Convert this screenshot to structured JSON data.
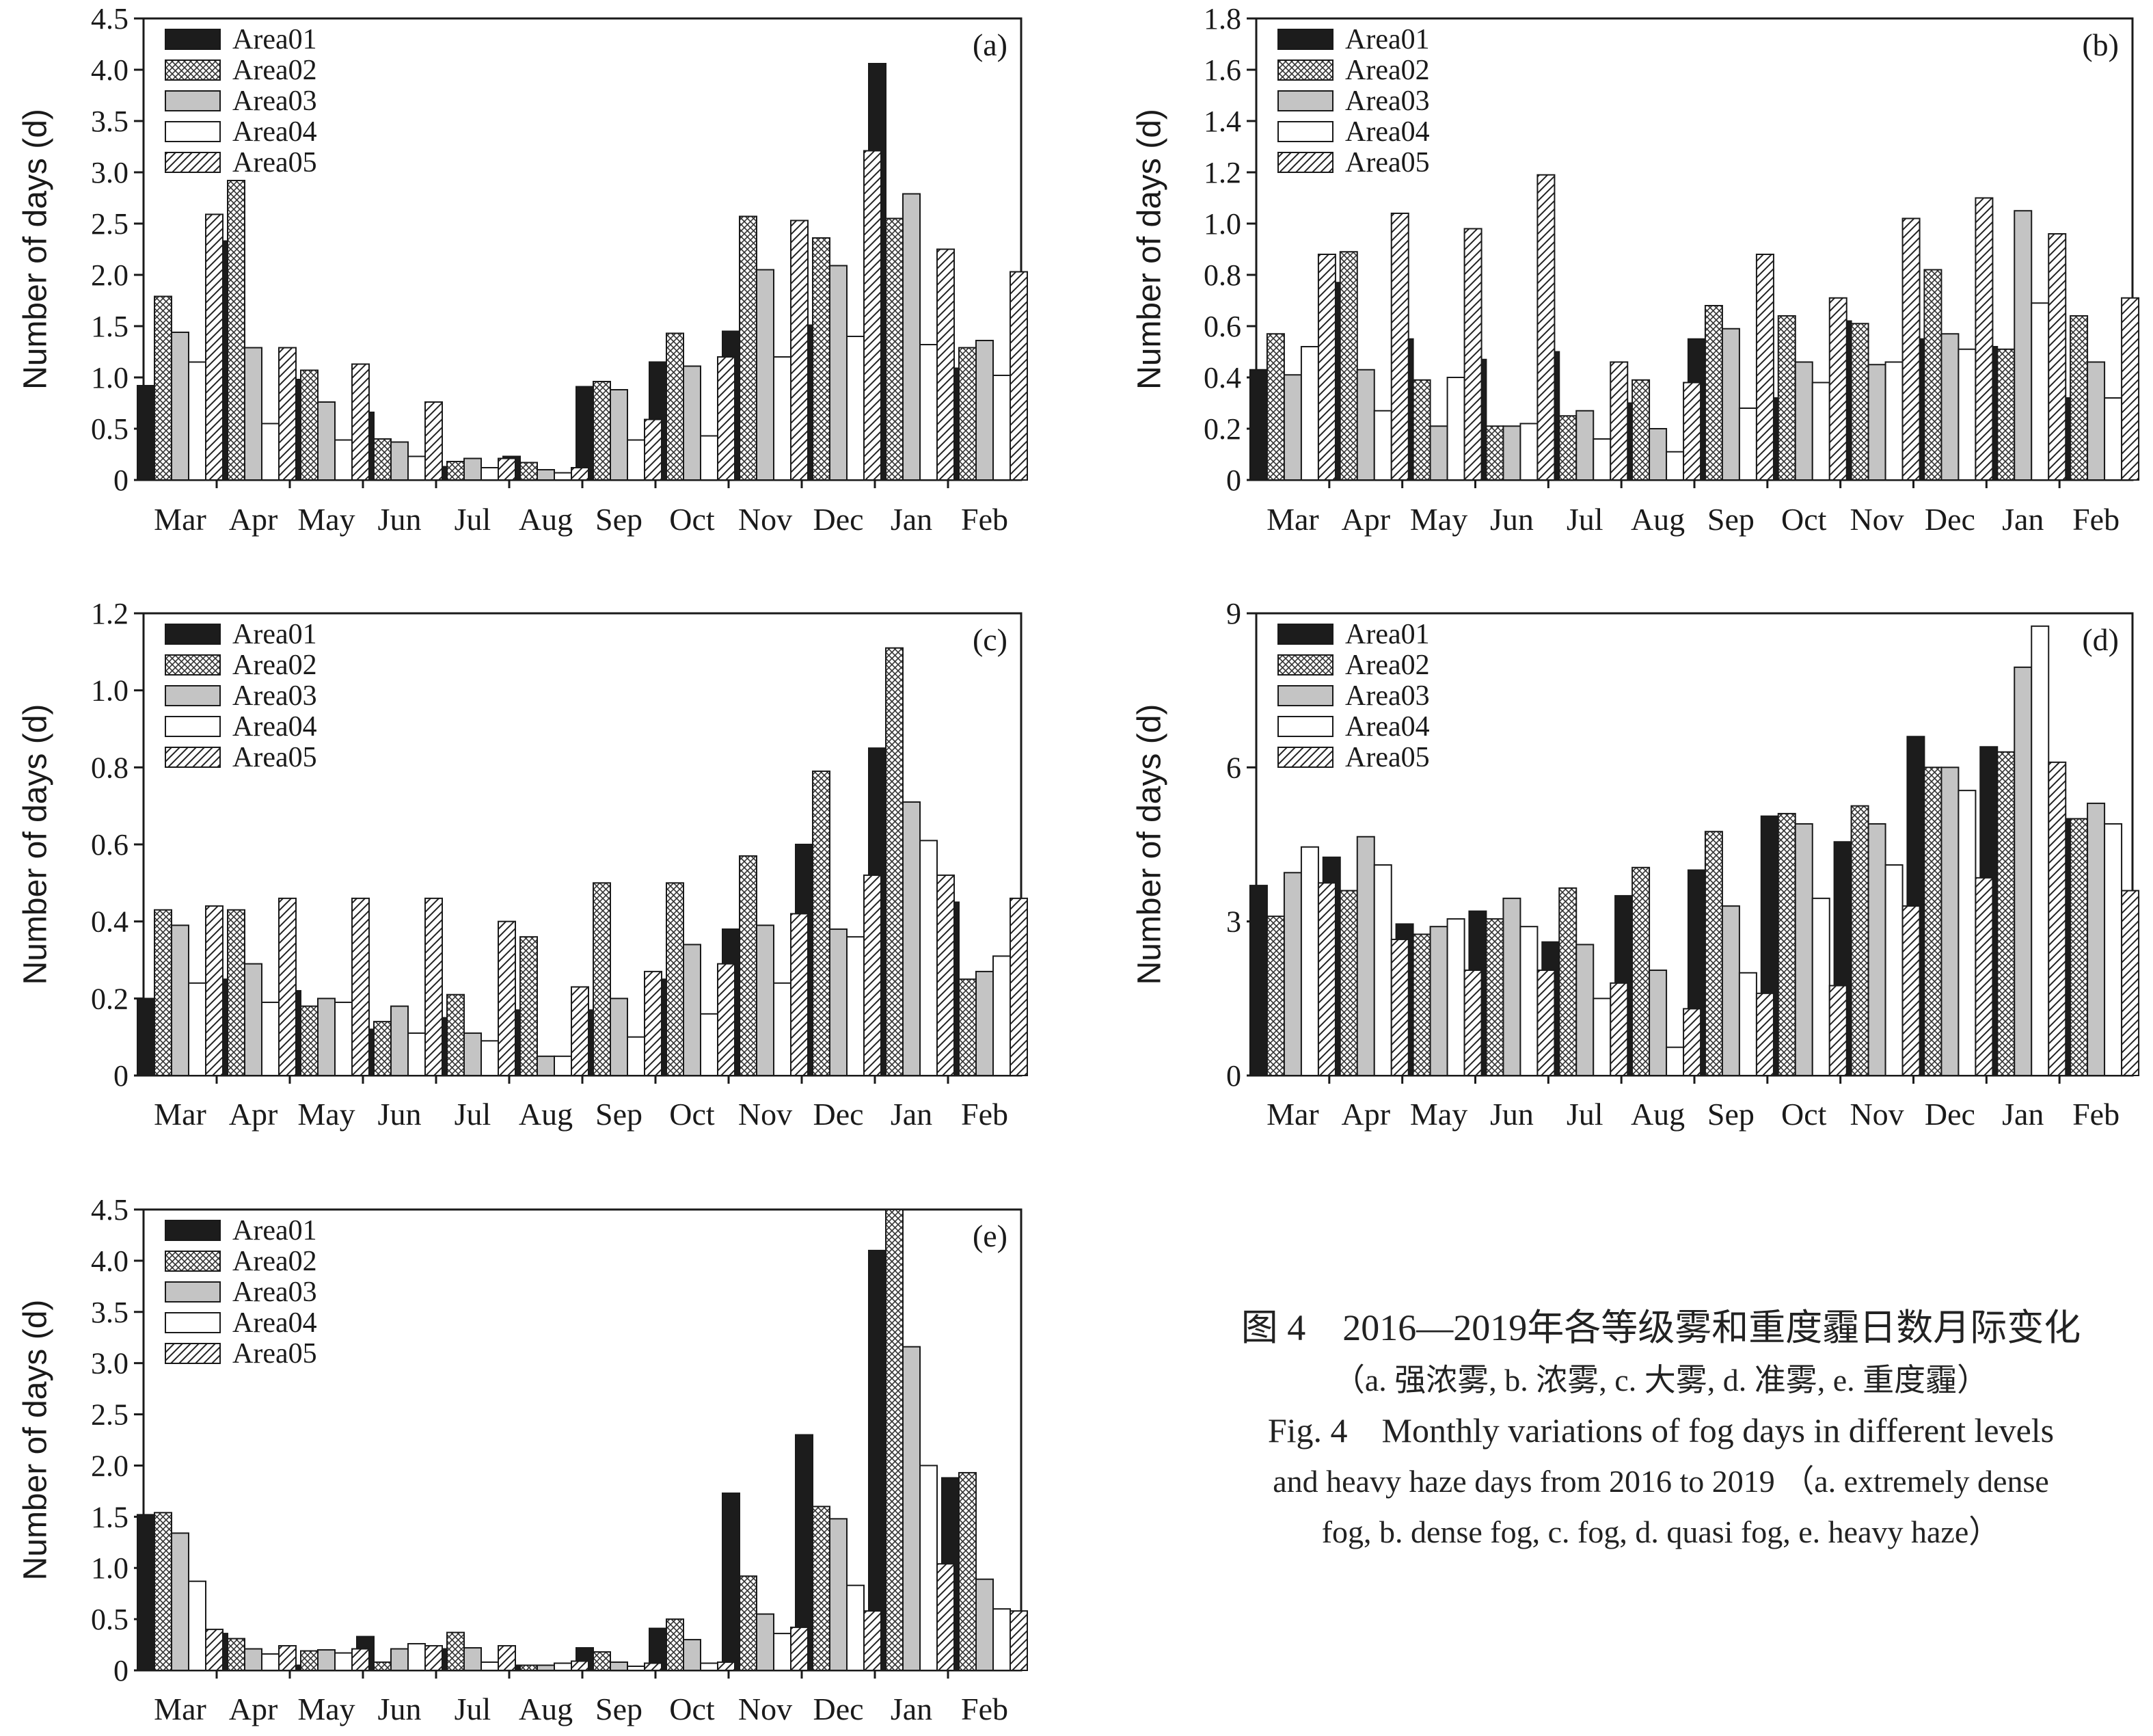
{
  "series_names": [
    "Area01",
    "Area02",
    "Area03",
    "Area04",
    "Area05"
  ],
  "months": [
    "Mar",
    "Apr",
    "May",
    "Jun",
    "Jul",
    "Aug",
    "Sep",
    "Oct",
    "Nov",
    "Dec",
    "Jan",
    "Feb"
  ],
  "y_label": "Number of days (d)",
  "colors": {
    "axis": "#1a1a1a",
    "solid": "#1c1c1c",
    "gray": "#c4c4c4",
    "white": "#ffffff"
  },
  "chart_data": [
    {
      "type": "bar",
      "panel_label": "(a)",
      "ylabel": "Number of days (d)",
      "ylim": [
        0,
        4.5
      ],
      "yticks": [
        "0",
        "0.5",
        "1.0",
        "1.5",
        "2.0",
        "2.5",
        "3.0",
        "3.5",
        "4.0",
        "4.5"
      ],
      "categories": [
        "Mar",
        "Apr",
        "May",
        "Jun",
        "Jul",
        "Aug",
        "Sep",
        "Oct",
        "Nov",
        "Dec",
        "Jan",
        "Feb"
      ],
      "legend": "top-left",
      "series": [
        {
          "name": "Area01",
          "values": [
            0.92,
            2.33,
            0.98,
            0.66,
            0.13,
            0.23,
            0.91,
            1.15,
            1.45,
            1.51,
            4.06,
            1.09
          ]
        },
        {
          "name": "Area02",
          "values": [
            1.79,
            2.92,
            1.07,
            0.4,
            0.18,
            0.17,
            0.96,
            1.43,
            2.57,
            2.36,
            2.55,
            1.29
          ]
        },
        {
          "name": "Area03",
          "values": [
            1.44,
            1.29,
            0.76,
            0.37,
            0.21,
            0.1,
            0.88,
            1.11,
            2.05,
            2.09,
            2.79,
            1.36
          ]
        },
        {
          "name": "Area04",
          "values": [
            1.15,
            0.55,
            0.39,
            0.23,
            0.12,
            0.07,
            0.39,
            0.43,
            1.2,
            1.4,
            1.32,
            1.02
          ]
        },
        {
          "name": "Area05",
          "values": [
            2.59,
            1.29,
            1.13,
            0.76,
            0.21,
            0.12,
            0.59,
            1.2,
            2.53,
            3.21,
            2.25,
            2.03
          ]
        }
      ]
    },
    {
      "type": "bar",
      "panel_label": "(b)",
      "ylabel": "Number of days (d)",
      "ylim": [
        0,
        1.8
      ],
      "yticks": [
        "0",
        "0.2",
        "0.4",
        "0.6",
        "0.8",
        "1.0",
        "1.2",
        "1.4",
        "1.6",
        "1.8"
      ],
      "categories": [
        "Mar",
        "Apr",
        "May",
        "Jun",
        "Jul",
        "Aug",
        "Sep",
        "Oct",
        "Nov",
        "Dec",
        "Jan",
        "Feb"
      ],
      "legend": "top-left",
      "series": [
        {
          "name": "Area01",
          "values": [
            0.43,
            0.77,
            0.55,
            0.47,
            0.5,
            0.3,
            0.55,
            0.32,
            0.62,
            0.55,
            0.52,
            0.32
          ]
        },
        {
          "name": "Area02",
          "values": [
            0.57,
            0.89,
            0.39,
            0.21,
            0.25,
            0.39,
            0.68,
            0.64,
            0.61,
            0.82,
            0.51,
            0.64
          ]
        },
        {
          "name": "Area03",
          "values": [
            0.41,
            0.43,
            0.21,
            0.21,
            0.27,
            0.2,
            0.59,
            0.46,
            0.45,
            0.57,
            1.05,
            0.46
          ]
        },
        {
          "name": "Area04",
          "values": [
            0.52,
            0.27,
            0.4,
            0.22,
            0.16,
            0.11,
            0.28,
            0.38,
            0.46,
            0.51,
            0.69,
            0.32
          ]
        },
        {
          "name": "Area05",
          "values": [
            0.88,
            1.04,
            0.98,
            1.19,
            0.46,
            0.38,
            0.88,
            0.71,
            1.02,
            1.1,
            0.96,
            0.71
          ]
        }
      ]
    },
    {
      "type": "bar",
      "panel_label": "(c)",
      "ylabel": "Number of days (d)",
      "ylim": [
        0,
        1.2
      ],
      "yticks": [
        "0",
        "0.2",
        "0.4",
        "0.6",
        "0.8",
        "1.0",
        "1.2"
      ],
      "categories": [
        "Mar",
        "Apr",
        "May",
        "Jun",
        "Jul",
        "Aug",
        "Sep",
        "Oct",
        "Nov",
        "Dec",
        "Jan",
        "Feb"
      ],
      "legend": "top-left",
      "series": [
        {
          "name": "Area01",
          "values": [
            0.2,
            0.25,
            0.22,
            0.12,
            0.15,
            0.17,
            0.17,
            0.25,
            0.38,
            0.6,
            0.85,
            0.45
          ]
        },
        {
          "name": "Area02",
          "values": [
            0.43,
            0.43,
            0.18,
            0.14,
            0.21,
            0.36,
            0.5,
            0.5,
            0.57,
            0.79,
            1.11,
            0.25
          ]
        },
        {
          "name": "Area03",
          "values": [
            0.39,
            0.29,
            0.2,
            0.18,
            0.11,
            0.05,
            0.2,
            0.34,
            0.39,
            0.38,
            0.71,
            0.27
          ]
        },
        {
          "name": "Area04",
          "values": [
            0.24,
            0.19,
            0.19,
            0.11,
            0.09,
            0.05,
            0.1,
            0.16,
            0.24,
            0.36,
            0.61,
            0.31
          ]
        },
        {
          "name": "Area05",
          "values": [
            0.44,
            0.46,
            0.46,
            0.46,
            0.4,
            0.23,
            0.27,
            0.29,
            0.42,
            0.52,
            0.52,
            0.46
          ]
        }
      ]
    },
    {
      "type": "bar",
      "panel_label": "(d)",
      "ylabel": "Number of days (d)",
      "ylim": [
        0,
        9
      ],
      "yticks": [
        "0",
        "3",
        "6",
        "9"
      ],
      "categories": [
        "Mar",
        "Apr",
        "May",
        "Jun",
        "Jul",
        "Aug",
        "Sep",
        "Oct",
        "Nov",
        "Dec",
        "Jan",
        "Feb"
      ],
      "legend": "top-left",
      "series": [
        {
          "name": "Area01",
          "values": [
            3.7,
            4.25,
            2.95,
            3.2,
            2.6,
            3.5,
            4.0,
            5.05,
            4.55,
            6.6,
            6.4,
            5.0
          ]
        },
        {
          "name": "Area02",
          "values": [
            3.1,
            3.6,
            2.75,
            3.05,
            3.65,
            4.05,
            4.75,
            5.1,
            5.25,
            6.0,
            6.3,
            5.0
          ]
        },
        {
          "name": "Area03",
          "values": [
            3.95,
            4.65,
            2.9,
            3.45,
            2.55,
            2.05,
            3.3,
            4.9,
            4.9,
            6.0,
            7.95,
            5.3
          ]
        },
        {
          "name": "Area04",
          "values": [
            4.45,
            4.1,
            3.05,
            2.9,
            1.5,
            0.55,
            2.0,
            3.45,
            4.1,
            5.55,
            8.75,
            4.9
          ]
        },
        {
          "name": "Area05",
          "values": [
            3.75,
            2.65,
            2.05,
            2.05,
            1.8,
            1.3,
            1.6,
            1.75,
            3.3,
            3.85,
            6.1,
            3.6
          ]
        }
      ]
    },
    {
      "type": "bar",
      "panel_label": "(e)",
      "ylabel": "Number of days (d)",
      "ylim": [
        0,
        4.5
      ],
      "yticks": [
        "0",
        "0.5",
        "1.0",
        "1.5",
        "2.0",
        "2.5",
        "3.0",
        "3.5",
        "4.0",
        "4.5"
      ],
      "categories": [
        "Mar",
        "Apr",
        "May",
        "Jun",
        "Jul",
        "Aug",
        "Sep",
        "Oct",
        "Nov",
        "Dec",
        "Jan",
        "Feb"
      ],
      "legend": "top-left",
      "series": [
        {
          "name": "Area01",
          "values": [
            1.52,
            0.36,
            0.05,
            0.33,
            0.21,
            0.05,
            0.22,
            0.41,
            1.73,
            2.3,
            4.1,
            1.88
          ]
        },
        {
          "name": "Area02",
          "values": [
            1.54,
            0.31,
            0.19,
            0.08,
            0.37,
            0.05,
            0.18,
            0.5,
            0.92,
            1.6,
            4.5,
            1.93
          ]
        },
        {
          "name": "Area03",
          "values": [
            1.34,
            0.21,
            0.2,
            0.21,
            0.22,
            0.05,
            0.08,
            0.3,
            0.55,
            1.48,
            3.16,
            0.89
          ]
        },
        {
          "name": "Area04",
          "values": [
            0.87,
            0.16,
            0.17,
            0.26,
            0.08,
            0.07,
            0.04,
            0.07,
            0.36,
            0.83,
            2.0,
            0.6
          ]
        },
        {
          "name": "Area05",
          "values": [
            0.4,
            0.24,
            0.21,
            0.24,
            0.24,
            0.09,
            0.07,
            0.08,
            0.42,
            0.58,
            1.04,
            0.58
          ]
        }
      ]
    }
  ],
  "caption": {
    "title_cn": "图 4　2016—2019年各等级雾和重度霾日数月际变化",
    "sub_cn": "（a. 强浓雾, b. 浓雾, c. 大雾, d. 准雾, e. 重度霾）",
    "title_en": "Fig. 4　Monthly variations of fog days in different levels",
    "line2_en": "and heavy haze days from 2016 to 2019 （a. extremely dense",
    "line3_en": "fog, b. dense fog, c. fog, d. quasi fog, e. heavy haze）"
  }
}
